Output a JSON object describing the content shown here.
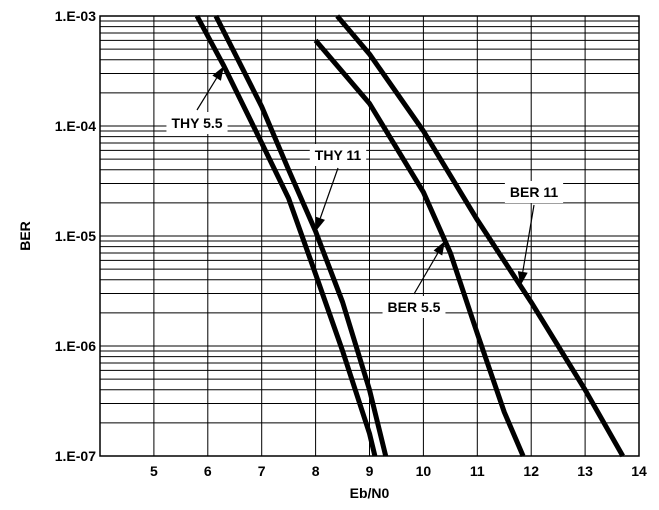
{
  "chart_data": {
    "type": "line",
    "xlabel": "Eb/N0",
    "ylabel": "BER",
    "xlim": [
      4,
      14
    ],
    "ylim": [
      1e-07,
      0.001
    ],
    "y_scale": "log",
    "grid": true,
    "x_ticks": [
      {
        "value": 5,
        "label": "5"
      },
      {
        "value": 6,
        "label": "6"
      },
      {
        "value": 7,
        "label": "7"
      },
      {
        "value": 8,
        "label": "8"
      },
      {
        "value": 9,
        "label": "9"
      },
      {
        "value": 10,
        "label": "10"
      },
      {
        "value": 11,
        "label": "11"
      },
      {
        "value": 12,
        "label": "12"
      },
      {
        "value": 13,
        "label": "13"
      },
      {
        "value": 14,
        "label": "14"
      }
    ],
    "y_ticks": [
      {
        "value": 0.001,
        "label": "1.E-03"
      },
      {
        "value": 0.0001,
        "label": "1.E-04"
      },
      {
        "value": 1e-05,
        "label": "1.E-05"
      },
      {
        "value": 1e-06,
        "label": "1.E-06"
      },
      {
        "value": 1e-07,
        "label": "1.E-07"
      }
    ],
    "series": [
      {
        "name": "THY 5.5",
        "points": [
          [
            5.8,
            0.001
          ],
          [
            6.3,
            0.00035
          ],
          [
            7.0,
            7e-05
          ],
          [
            7.5,
            2.2e-05
          ],
          [
            8.0,
            4.5e-06
          ],
          [
            8.5,
            9e-07
          ],
          [
            9.0,
            1.6e-07
          ],
          [
            9.1,
            1e-07
          ]
        ]
      },
      {
        "name": "THY 11",
        "points": [
          [
            6.15,
            0.001
          ],
          [
            7.0,
            0.00015
          ],
          [
            7.5,
            4e-05
          ],
          [
            8.0,
            1.1e-05
          ],
          [
            8.5,
            2.5e-06
          ],
          [
            9.0,
            4e-07
          ],
          [
            9.3,
            1e-07
          ]
        ]
      },
      {
        "name": "BER 5.5",
        "points": [
          [
            8.0,
            0.0006
          ],
          [
            9.0,
            0.00016
          ],
          [
            10.0,
            2.5e-05
          ],
          [
            10.5,
            7e-06
          ],
          [
            11.0,
            1.3e-06
          ],
          [
            11.5,
            2.5e-07
          ],
          [
            11.85,
            1e-07
          ]
        ]
      },
      {
        "name": "BER 11",
        "points": [
          [
            8.4,
            0.001
          ],
          [
            9.0,
            0.00045
          ],
          [
            10.0,
            9e-05
          ],
          [
            11.0,
            1.4e-05
          ],
          [
            12.0,
            2.5e-06
          ],
          [
            13.0,
            4e-07
          ],
          [
            13.7,
            1e-07
          ]
        ]
      }
    ],
    "annotations": [
      {
        "text": "THY 5.5",
        "series": 0,
        "at_x": 6.3
      },
      {
        "text": "THY 11",
        "series": 1,
        "at_x": 8.0
      },
      {
        "text": "BER 5.5",
        "series": 2,
        "at_x": 10.4
      },
      {
        "text": "BER 11",
        "series": 3,
        "at_x": 11.8
      }
    ]
  }
}
